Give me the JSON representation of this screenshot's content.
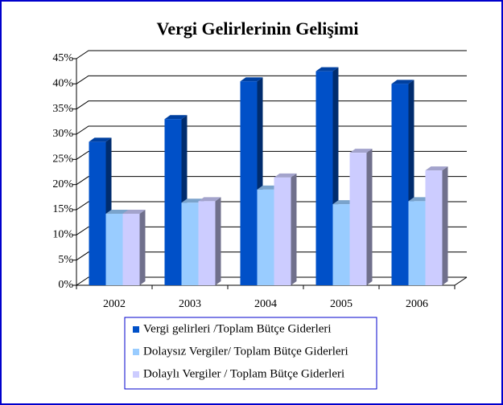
{
  "chart_data": {
    "type": "bar3d",
    "title": "Vergi Gelirlerinin Gelişimi",
    "categories": [
      "2002",
      "2003",
      "2004",
      "2005",
      "2006"
    ],
    "series": [
      {
        "name": "Vergi gelirleri /Toplam Bütçe Giderleri",
        "color": "#0050c8",
        "values": [
          28.5,
          33,
          40.5,
          42.5,
          40
        ]
      },
      {
        "name": "Dolaysız Vergiler/ Toplam Bütçe Giderleri",
        "color": "#99ccff",
        "values": [
          14.2,
          16.4,
          19,
          16.1,
          16.7
        ]
      },
      {
        "name": "Dolaylı Vergiler / Toplam Bütçe Giderleri",
        "color": "#ccccff",
        "values": [
          14.2,
          16.7,
          21.4,
          26.3,
          22.8
        ]
      }
    ],
    "ylim": [
      0,
      45
    ],
    "yticks": [
      {
        "value": 0,
        "label": "0%"
      },
      {
        "value": 5,
        "label": "5%"
      },
      {
        "value": 10,
        "label": "10%"
      },
      {
        "value": 15,
        "label": "15%"
      },
      {
        "value": 20,
        "label": "20%"
      },
      {
        "value": 25,
        "label": "25%"
      },
      {
        "value": 30,
        "label": "30%"
      },
      {
        "value": 35,
        "label": "35%"
      },
      {
        "value": 40,
        "label": "40%"
      },
      {
        "value": 45,
        "label": "45%"
      }
    ],
    "grid": true
  }
}
